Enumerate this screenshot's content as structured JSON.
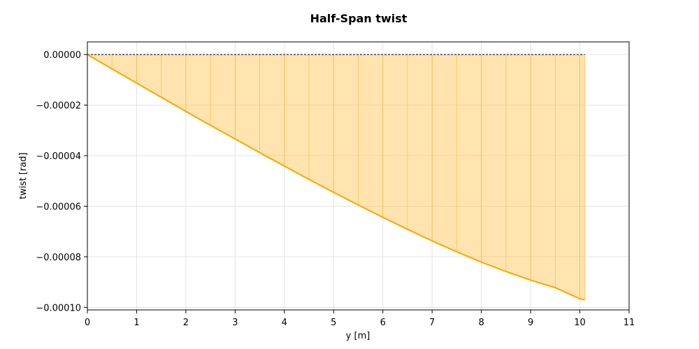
{
  "chart_data": {
    "type": "area",
    "title": "Half-Span twist",
    "xlabel": "y [m]",
    "ylabel": "twist [rad]",
    "xlim": [
      0,
      11
    ],
    "ylim": [
      -0.000101,
      5e-06
    ],
    "xticks": [
      0,
      1,
      2,
      3,
      4,
      5,
      6,
      7,
      8,
      9,
      10,
      11
    ],
    "xtick_labels": [
      "0",
      "1",
      "2",
      "3",
      "4",
      "5",
      "6",
      "7",
      "8",
      "9",
      "10",
      "11"
    ],
    "yticks": [
      0,
      -2e-05,
      -4e-05,
      -6e-05,
      -8e-05,
      -0.0001
    ],
    "ytick_labels": [
      "0.00000",
      "−0.00002",
      "−0.00004",
      "−0.00006",
      "−0.00008",
      "−0.00010"
    ],
    "grid": true,
    "color": "#ffa500",
    "fill_color": "#ffbf40",
    "zero_line": true,
    "series": [
      {
        "x": [
          0,
          0.5,
          1,
          1.5,
          2,
          2.5,
          3,
          3.5,
          4,
          4.5,
          5,
          5.5,
          6,
          6.5,
          7,
          7.5,
          8,
          8.5,
          9,
          9.5,
          10,
          10.1
        ],
        "values": [
          0,
          -5.7e-06,
          -1.13e-05,
          -1.69e-05,
          -2.25e-05,
          -2.8e-05,
          -3.34e-05,
          -3.88e-05,
          -4.41e-05,
          -4.94e-05,
          -5.45e-05,
          -5.95e-05,
          -6.44e-05,
          -6.91e-05,
          -7.37e-05,
          -7.8e-05,
          -8.21e-05,
          -8.58e-05,
          -8.92e-05,
          -9.22e-05,
          -9.66e-05,
          -9.7e-05
        ]
      }
    ]
  }
}
